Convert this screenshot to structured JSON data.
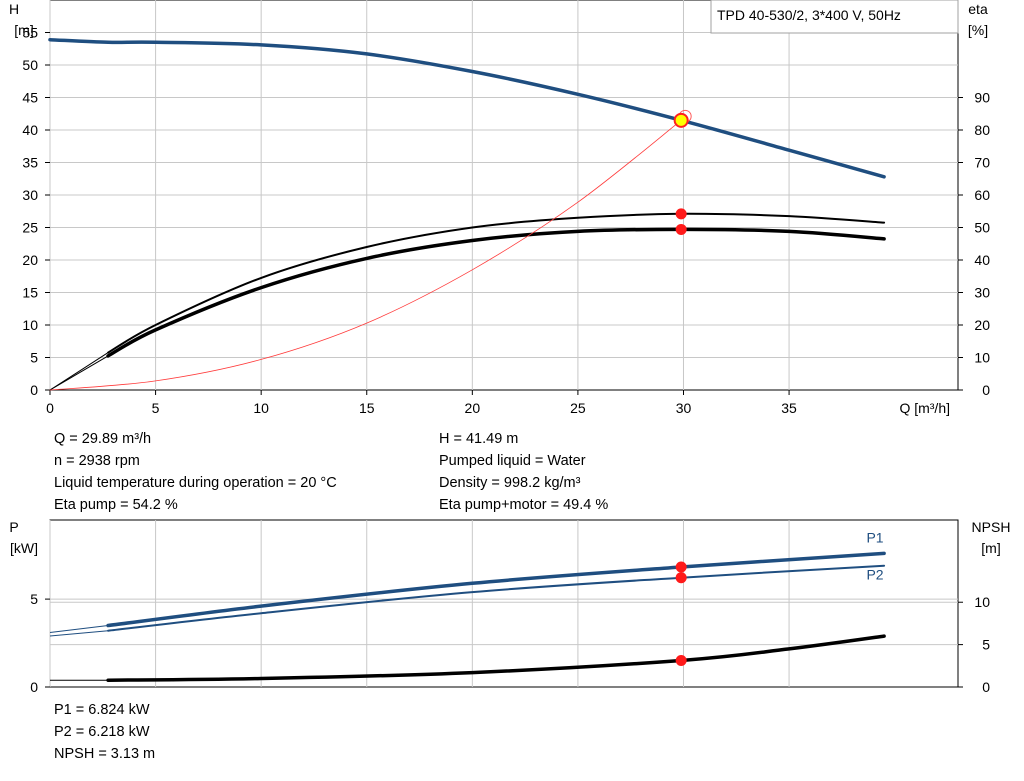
{
  "chart_data": [
    {
      "type": "line",
      "legend_title": "TPD 40-530/2, 3*400 V, 50Hz",
      "left_axis_label": [
        "H",
        "[m]"
      ],
      "right_axis_label": [
        "eta",
        "[%]"
      ],
      "xlabel": "Q [m³/h]",
      "xlim": [
        0,
        43
      ],
      "ylim": [
        0,
        60
      ],
      "y2lim": [
        0,
        120
      ],
      "x_ticks": [
        "0",
        "5",
        "10",
        "15",
        "20",
        "25",
        "30",
        "35"
      ],
      "y_ticks": [
        "0",
        "5",
        "10",
        "15",
        "20",
        "25",
        "30",
        "35",
        "40",
        "45",
        "50",
        "55"
      ],
      "y2_ticks": [
        "0",
        "10",
        "20",
        "30",
        "40",
        "50",
        "60",
        "70",
        "80",
        "90"
      ],
      "grid": true,
      "series": [
        {
          "axis": "left",
          "color": "#1f4e80",
          "x": [
            0,
            2.75,
            5,
            10,
            15,
            20,
            25,
            29.89,
            35,
            39.5
          ],
          "y": [
            53.9,
            53.5,
            53.5,
            53.1,
            51.7,
            49.0,
            45.5,
            41.49,
            36.9,
            32.8
          ]
        },
        {
          "axis": "right",
          "color": "#000000",
          "x": [
            0,
            2.75,
            5,
            10,
            15,
            20,
            25,
            29.89,
            35,
            39.5
          ],
          "y": [
            0,
            11.5,
            20,
            34.5,
            44,
            50,
            53,
            54.2,
            53.5,
            51.5
          ]
        },
        {
          "axis": "right",
          "color": "#000000",
          "x": [
            0,
            2.75,
            5,
            10,
            15,
            20,
            25,
            29.89,
            35,
            39.5
          ],
          "y": [
            0,
            10.5,
            18.5,
            31.5,
            40.5,
            46,
            48.8,
            49.4,
            48.8,
            46.5
          ]
        },
        {
          "axis": "left",
          "color": "#ff3b3b",
          "x": [
            0,
            5,
            10,
            15,
            20,
            25,
            29.89
          ],
          "y": [
            0,
            1.4,
            4.7,
            10.3,
            18.5,
            28.9,
            41.49
          ]
        }
      ],
      "operating_point": {
        "Q": 29.89,
        "H": 41.49,
        "eta_pump": 54.2,
        "eta_total": 49.4
      }
    },
    {
      "type": "line",
      "left_axis_label": [
        "P",
        "[kW]"
      ],
      "right_axis_label": [
        "NPSH",
        "[m]"
      ],
      "xlim": [
        0,
        43
      ],
      "ylim": [
        0,
        9.5
      ],
      "y2lim": [
        0,
        19.7
      ],
      "y_ticks": [
        "0",
        "5"
      ],
      "y2_ticks": [
        "0",
        "5",
        "10"
      ],
      "grid": true,
      "series": [
        {
          "name": "P1",
          "axis": "left",
          "color": "#1f4e80",
          "x": [
            0,
            2.75,
            10,
            20,
            29.89,
            39.5
          ],
          "y": [
            3.1,
            3.5,
            4.6,
            5.9,
            6.824,
            7.6
          ]
        },
        {
          "name": "P2",
          "axis": "left",
          "color": "#1f4e80",
          "x": [
            0,
            2.75,
            10,
            20,
            29.89,
            39.5
          ],
          "y": [
            2.9,
            3.2,
            4.2,
            5.4,
            6.218,
            6.9
          ]
        },
        {
          "name": "NPSH",
          "axis": "right",
          "color": "#000000",
          "x": [
            0,
            2.75,
            10,
            20,
            29.89,
            35,
            39.5
          ],
          "y": [
            0.8,
            0.8,
            1.0,
            1.7,
            3.13,
            4.5,
            6.0
          ]
        }
      ],
      "operating_point": {
        "Q": 29.89,
        "P1": 6.824,
        "P2": 6.218,
        "NPSH": 3.13
      }
    }
  ],
  "info_top_left": [
    "Q = 29.89 m³/h",
    "n = 2938 rpm",
    "Liquid temperature during operation = 20 °C",
    "Eta pump = 54.2 %"
  ],
  "info_top_right": [
    "H = 41.49 m",
    "Pumped liquid = Water",
    "Density = 998.2 kg/m³",
    "Eta pump+motor = 49.4 %"
  ],
  "info_bottom": [
    "P1 = 6.824 kW",
    "P2 = 6.218 kW",
    "NPSH = 3.13 m"
  ]
}
